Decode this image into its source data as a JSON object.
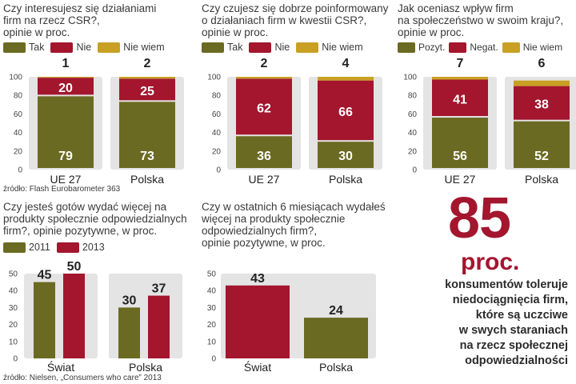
{
  "colors": {
    "olive": "#6b6a22",
    "red": "#a3162e",
    "gold": "#c9a024",
    "panel": "#e4e4e4"
  },
  "legends": {
    "csr": {
      "tak": "Tak",
      "nie": "Nie",
      "nie_wiem": "Nie wiem"
    },
    "impact": {
      "pos": "Pozyt.",
      "neg": "Negat.",
      "nie_wiem": "Nie wiem"
    },
    "years": {
      "y2011": "2011",
      "y2013": "2013"
    }
  },
  "panels": {
    "p1": {
      "title": [
        "Czy interesujesz się  działaniami",
        "firm na rzecz CSR?,",
        "opinie w proc."
      ]
    },
    "p2": {
      "title": [
        "Czy czujesz się dobrze poinformowany",
        "o działaniach firm w kwestii CSR?,",
        "opinie w proc."
      ]
    },
    "p3": {
      "title": [
        "Jak oceniasz wpływ firm",
        "na społeczeństwo w swoim kraju?,",
        "opinie w proc."
      ]
    },
    "p4": {
      "title": [
        "Czy jesteś gotów wydać więcej na",
        "produkty społecznie odpowiedzialnych",
        "firm?, opinie pozytywne, w proc."
      ]
    },
    "p5": {
      "title": [
        "Czy w ostatnich  6 miesiącach wydałeś",
        "więcej na produkty społecznie",
        "odpowiedzialnych  firm?,",
        "opinie pozytywne, w proc."
      ]
    }
  },
  "sources": {
    "top": "źródło: Flash Eurobarometer 363",
    "bottom": "źródło: Nielsen, „Consumers who care” 2013"
  },
  "highlight": {
    "value": "85",
    "unit": "proc.",
    "description": [
      "konsumentów toleruje",
      "niedociągnięcia  firm,",
      "które są uczciwe",
      "w swych staraniach",
      "na rzecz społecznej",
      "odpowiedzialności"
    ]
  },
  "chart_data": [
    {
      "type": "bar",
      "stacked": true,
      "title": "Czy interesujesz się  działaniami firm na rzecz CSR?, opinie w proc.",
      "categories": [
        "UE 27",
        "Polska"
      ],
      "ylim": [
        0,
        100
      ],
      "yticks": [
        0,
        20,
        40,
        60,
        80,
        100
      ],
      "series": [
        {
          "name": "Tak",
          "values": [
            79,
            73
          ]
        },
        {
          "name": "Nie",
          "values": [
            20,
            25
          ]
        },
        {
          "name": "Nie wiem",
          "values": [
            1,
            2
          ]
        }
      ]
    },
    {
      "type": "bar",
      "stacked": true,
      "title": "Czy czujesz się dobrze poinformowany o działaniach firm w kwestii CSR?, opinie w proc.",
      "categories": [
        "UE 27",
        "Polska"
      ],
      "ylim": [
        0,
        100
      ],
      "yticks": [
        0,
        20,
        40,
        60,
        80,
        100
      ],
      "series": [
        {
          "name": "Tak",
          "values": [
            36,
            30
          ]
        },
        {
          "name": "Nie",
          "values": [
            62,
            66
          ]
        },
        {
          "name": "Nie wiem",
          "values": [
            2,
            4
          ]
        }
      ]
    },
    {
      "type": "bar",
      "stacked": true,
      "title": "Jak oceniasz wpływ firm na społeczeństwo w swoim kraju?, opinie w proc.",
      "categories": [
        "UE 27",
        "Polska"
      ],
      "ylim": [
        0,
        100
      ],
      "yticks": [
        0,
        20,
        40,
        60,
        80,
        100
      ],
      "series": [
        {
          "name": "Pozyt.",
          "values": [
            56,
            52
          ]
        },
        {
          "name": "Negat.",
          "values": [
            41,
            38
          ]
        },
        {
          "name": "Nie wiem",
          "values": [
            7,
            6
          ]
        }
      ]
    },
    {
      "type": "bar",
      "grouped": true,
      "title": "Czy jesteś gotów wydać więcej na produkty społecznie odpowiedzialnych firm?, opinie pozytywne, w proc.",
      "categories": [
        "Świat",
        "Polska"
      ],
      "ylim": [
        0,
        50
      ],
      "yticks": [
        0,
        10,
        20,
        30,
        40,
        50
      ],
      "series": [
        {
          "name": "2011",
          "values": [
            45,
            30
          ]
        },
        {
          "name": "2013",
          "values": [
            50,
            37
          ]
        }
      ]
    },
    {
      "type": "bar",
      "title": "Czy w ostatnich  6 miesiącach wydałeś więcej na produkty społecznie odpowiedzialnych  firm?, opinie pozytywne, w proc.",
      "categories": [
        "Świat",
        "Polska"
      ],
      "ylim": [
        0,
        50
      ],
      "yticks": [
        0,
        10,
        20,
        30,
        40,
        50
      ],
      "values": [
        43,
        24
      ]
    }
  ]
}
